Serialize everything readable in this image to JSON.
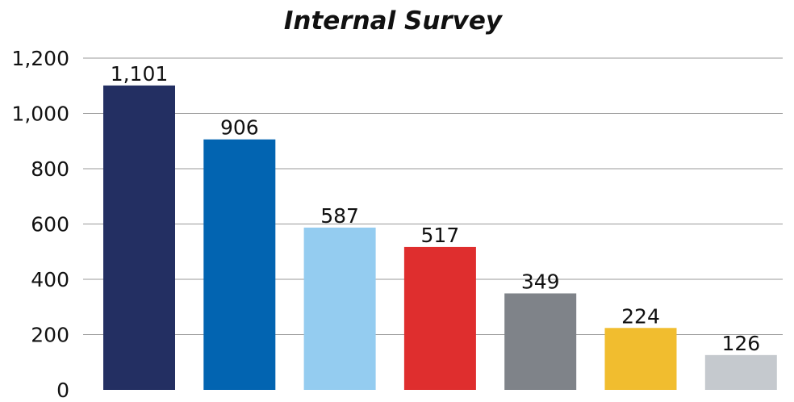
{
  "chart_data": {
    "type": "bar",
    "title": "Internal Survey",
    "xlabel": "",
    "ylabel": "",
    "ylim": [
      0,
      1200
    ],
    "yticks": [
      0,
      200,
      400,
      600,
      800,
      1000,
      1200
    ],
    "ytick_labels": [
      "0",
      "200",
      "400",
      "600",
      "800",
      "1,000",
      "1,200"
    ],
    "grid": true,
    "legend": "none",
    "values": [
      1101,
      906,
      587,
      517,
      349,
      224,
      126
    ],
    "data_labels": [
      "1,101",
      "906",
      "587",
      "517",
      "349",
      "224",
      "126"
    ],
    "colors": [
      "#232f62",
      "#0264b1",
      "#94ccf0",
      "#df2e2e",
      "#7f8389",
      "#f1bd2f",
      "#c5c9ce"
    ]
  }
}
